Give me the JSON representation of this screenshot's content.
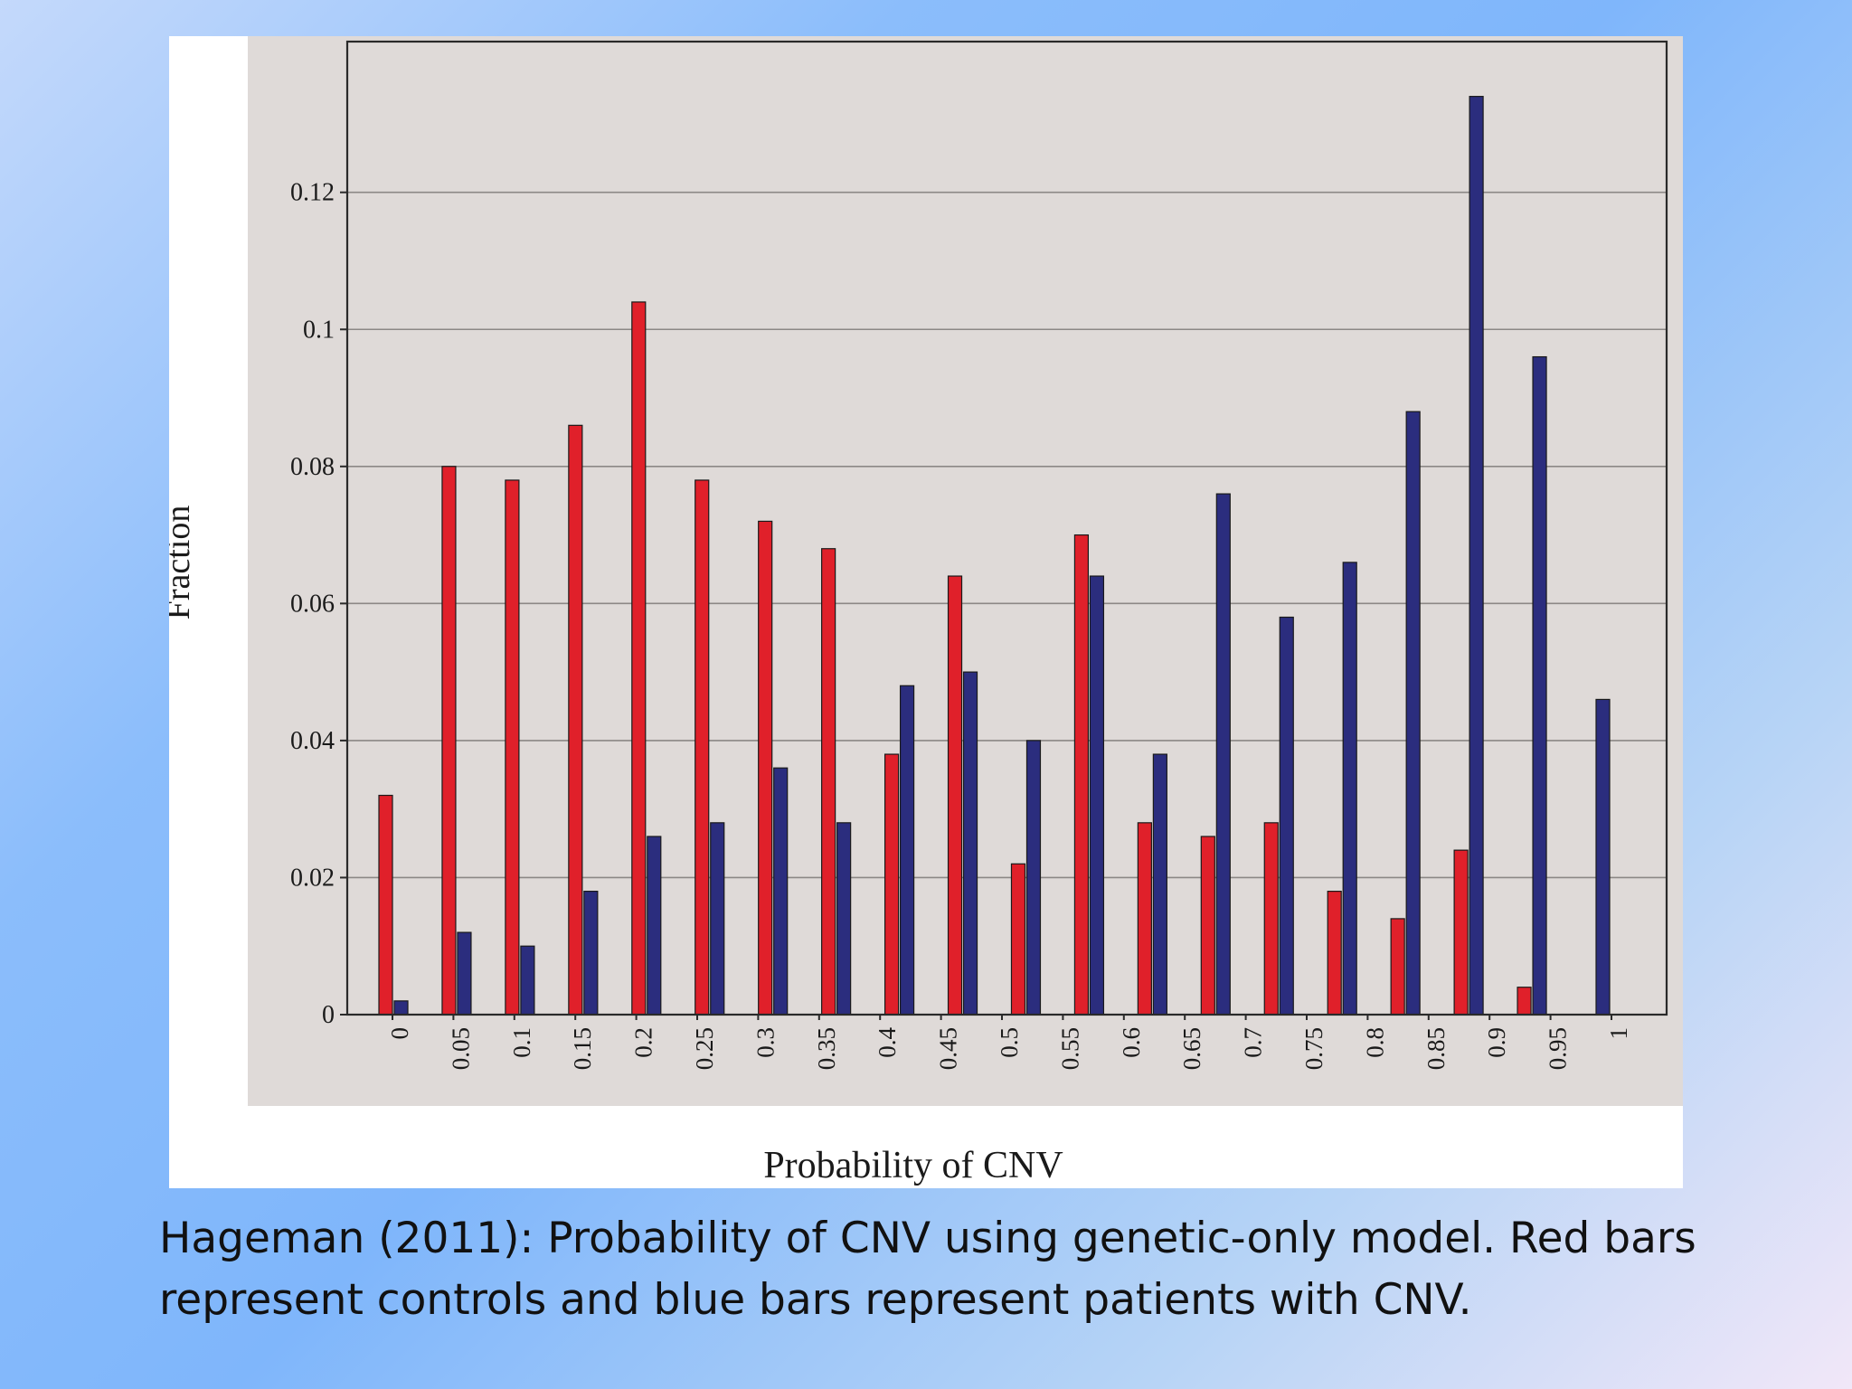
{
  "chart_data": {
    "type": "bar",
    "xlabel": "Probability of CNV",
    "ylabel": "Fraction",
    "ylim": [
      0,
      0.142
    ],
    "yticks": [
      "0",
      "0.02",
      "0.04",
      "0.06",
      "0.08",
      "0.1",
      "0.12"
    ],
    "xticks": [
      "0",
      "0.05",
      "0.1",
      "0.15",
      "0.2",
      "0.25",
      "0.3",
      "0.35",
      "0.4",
      "0.45",
      "0.5",
      "0.55",
      "0.6",
      "0.65",
      "0.7",
      "0.75",
      "0.8",
      "0.85",
      "0.9",
      "0.95",
      "1"
    ],
    "grid": true,
    "series": [
      {
        "color": "#e0202a",
        "values": [
          0.032,
          0.08,
          0.078,
          0.086,
          0.104,
          0.078,
          0.072,
          0.068,
          0.038,
          0.064,
          0.022,
          0.07,
          0.028,
          0.026,
          0.028,
          0.018,
          0.014,
          0.024,
          0.004,
          0
        ]
      },
      {
        "color": "#2b2d7e",
        "values": [
          0.002,
          0.012,
          0.01,
          0.018,
          0.026,
          0.028,
          0.036,
          0.028,
          0.048,
          0.05,
          0.04,
          0.064,
          0.038,
          0.076,
          0.058,
          0.066,
          0.088,
          0.134,
          0.096,
          0.046
        ]
      }
    ]
  },
  "caption": {
    "line1": "Hageman (2011): Probability of CNV using genetic-only model. Red bars",
    "line2": "represent controls and blue bars represent patients with CNV."
  },
  "colors": {
    "plot_background": "#dfdad8",
    "figure_background": "#ffffff",
    "grid": "#8c8886",
    "axis": "#2a2a2a"
  }
}
